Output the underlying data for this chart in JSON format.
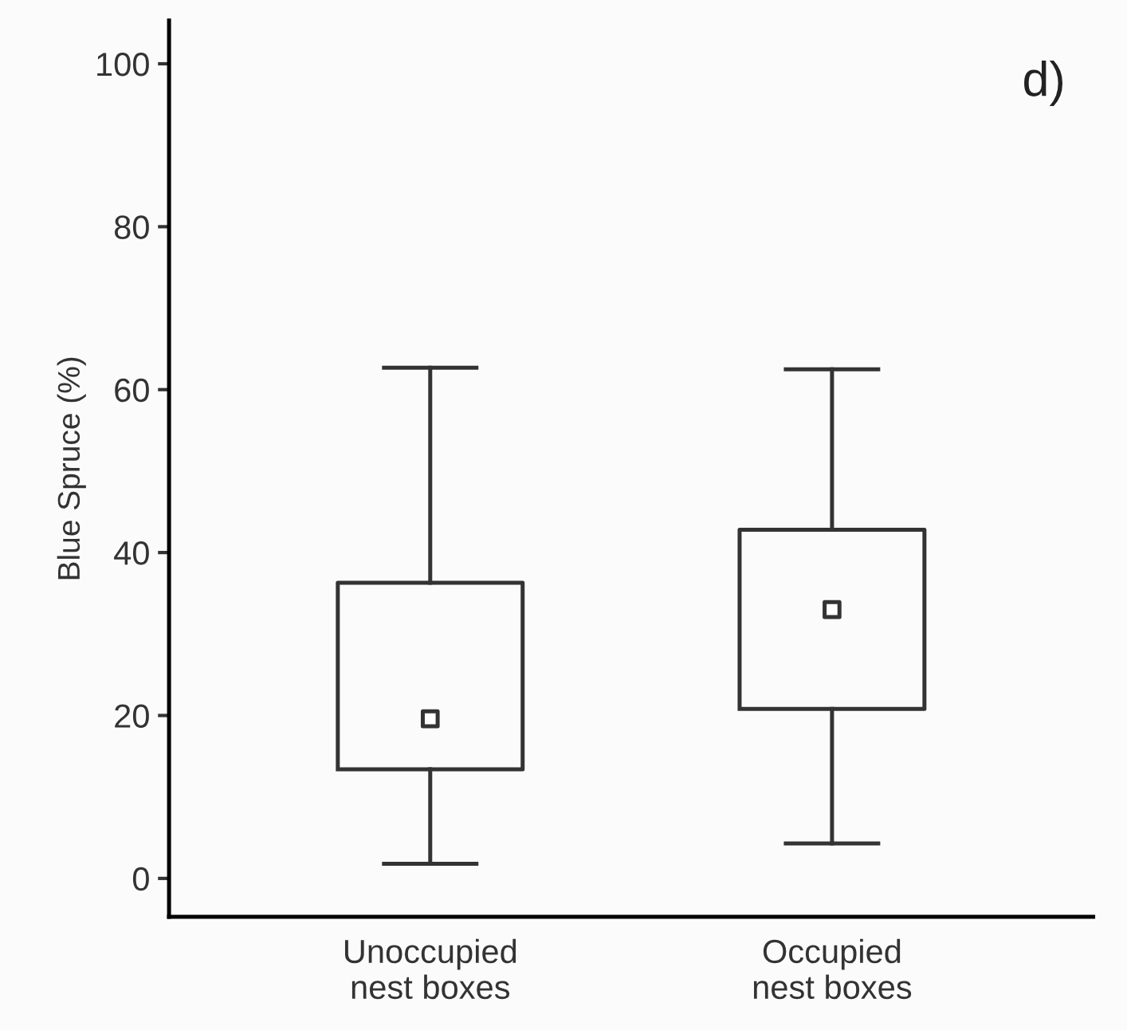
{
  "chart_data": {
    "type": "box",
    "ylabel": "Blue Spruce (%)",
    "categories": [
      "Unoccupied\nnest boxes",
      "Occupied\nnest boxes"
    ],
    "boxes": [
      {
        "low": 1.8,
        "q1": 13.4,
        "median": 19.6,
        "q3": 36.3,
        "high": 62.7
      },
      {
        "low": 4.3,
        "q1": 20.8,
        "median": 33.0,
        "q3": 42.8,
        "high": 62.5
      }
    ],
    "ylim": [
      -4.7,
      105.3
    ],
    "yticks": [
      0,
      20,
      40,
      60,
      80,
      100
    ],
    "annotations": [
      "d)"
    ],
    "grid": false
  }
}
